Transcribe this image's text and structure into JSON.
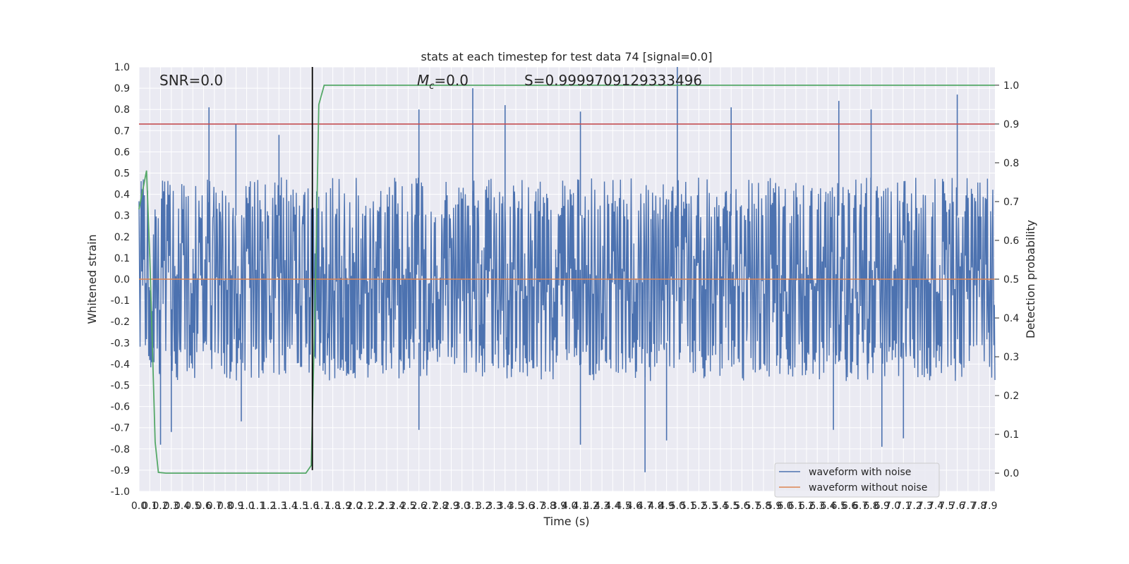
{
  "chart_data": {
    "type": "line",
    "title": "stats at each timestep for test data 74 [signal=0.0]",
    "xlabel": "Time (s)",
    "ylabel": "Whitened strain",
    "y2label": "Detection probability",
    "xlim": [
      0.0,
      7.95
    ],
    "ylim": [
      -1.0,
      1.0
    ],
    "y2lim": [
      -0.047,
      1.047
    ],
    "x_ticks": [
      "0.0",
      "0.1",
      "0.2",
      "0.3",
      "0.4",
      "0.5",
      "0.6",
      "0.7",
      "0.8",
      "0.9",
      "1.0",
      "1.1",
      "1.2",
      "1.3",
      "1.4",
      "1.5",
      "1.6",
      "1.7",
      "1.8",
      "1.9",
      "2.0",
      "2.1",
      "2.2",
      "2.3",
      "2.4",
      "2.5",
      "2.6",
      "2.7",
      "2.8",
      "2.9",
      "3.0",
      "3.1",
      "3.2",
      "3.3",
      "3.4",
      "3.5",
      "3.6",
      "3.7",
      "3.8",
      "3.9",
      "4.0",
      "4.1",
      "4.2",
      "4.3",
      "4.4",
      "4.5",
      "4.6",
      "4.7",
      "4.8",
      "4.9",
      "5.0",
      "5.1",
      "5.2",
      "5.3",
      "5.4",
      "5.5",
      "5.6",
      "5.7",
      "5.8",
      "5.9",
      "6.0",
      "6.1",
      "6.2",
      "6.3",
      "6.4",
      "6.5",
      "6.6",
      "6.7",
      "6.8",
      "6.9",
      "7.0",
      "7.1",
      "7.2",
      "7.3",
      "7.4",
      "7.5",
      "7.6",
      "7.7",
      "7.8",
      "7.9"
    ],
    "y_ticks": [
      "-1.0",
      "-0.9",
      "-0.8",
      "-0.7",
      "-0.6",
      "-0.5",
      "-0.4",
      "-0.3",
      "-0.2",
      "-0.1",
      "0.0",
      "0.1",
      "0.2",
      "0.3",
      "0.4",
      "0.5",
      "0.6",
      "0.7",
      "0.8",
      "0.9",
      "1.0"
    ],
    "y2_ticks": [
      "0.0",
      "0.1",
      "0.2",
      "0.3",
      "0.4",
      "0.5",
      "0.6",
      "0.7",
      "0.8",
      "0.9",
      "1.0"
    ],
    "annotations": {
      "snr": "SNR=0.0",
      "mc_symbol": "M",
      "mc_subscript": "c",
      "mc_value": "=0.0",
      "s": "S=0.9999709129333496"
    },
    "threshold_y2": 0.9,
    "vertical_marker_x": 1.61,
    "vertical_marker_range": [
      -0.9,
      1.0
    ],
    "noise_envelope": {
      "upper_typical": 0.45,
      "lower_typical": -0.45,
      "peak_x": [
        0.65,
        0.9,
        1.3,
        2.6,
        3.1,
        3.4,
        4.1,
        5.0,
        5.5,
        6.5,
        6.8,
        7.6
      ],
      "peak_y": [
        0.81,
        0.73,
        0.68,
        0.8,
        0.9,
        0.82,
        0.79,
        1.0,
        0.81,
        0.84,
        0.8,
        0.87
      ],
      "trough_x": [
        0.2,
        0.3,
        0.95,
        2.6,
        4.1,
        4.7,
        4.9,
        6.45,
        6.9,
        7.1
      ],
      "trough_y": [
        -0.78,
        -0.72,
        -0.67,
        -0.71,
        -0.78,
        -0.91,
        -0.76,
        -0.71,
        -0.79,
        -0.75
      ]
    },
    "series": [
      {
        "name": "waveform with noise",
        "color": "#4c72b0",
        "kind": "noise"
      },
      {
        "name": "waveform without noise",
        "color": "#dd8452",
        "x": [
          0.0,
          7.95
        ],
        "y": [
          0.0,
          0.0
        ]
      },
      {
        "color": "#55a868",
        "axis": "y2",
        "x": [
          0.0,
          0.07,
          0.1,
          0.15,
          0.18,
          0.25,
          0.3,
          0.5,
          1.0,
          1.4,
          1.55,
          1.6,
          1.64,
          1.67,
          1.72,
          1.8,
          2.0,
          3.0,
          5.0,
          7.0,
          7.95
        ],
        "y": [
          0.68,
          0.78,
          0.56,
          0.08,
          0.002,
          0.0,
          0.0,
          0.0,
          0.0,
          0.0,
          0.0,
          0.02,
          0.5,
          0.95,
          1.0,
          1.0,
          1.0,
          1.0,
          1.0,
          1.0,
          1.0
        ]
      },
      {
        "color": "#c44e52",
        "axis": "y2",
        "x": [
          0.0,
          7.95
        ],
        "y": [
          0.9,
          0.9
        ]
      }
    ],
    "legend": {
      "placement": "lower right",
      "entries": [
        "waveform with noise",
        "waveform without noise"
      ]
    },
    "grid": true
  }
}
